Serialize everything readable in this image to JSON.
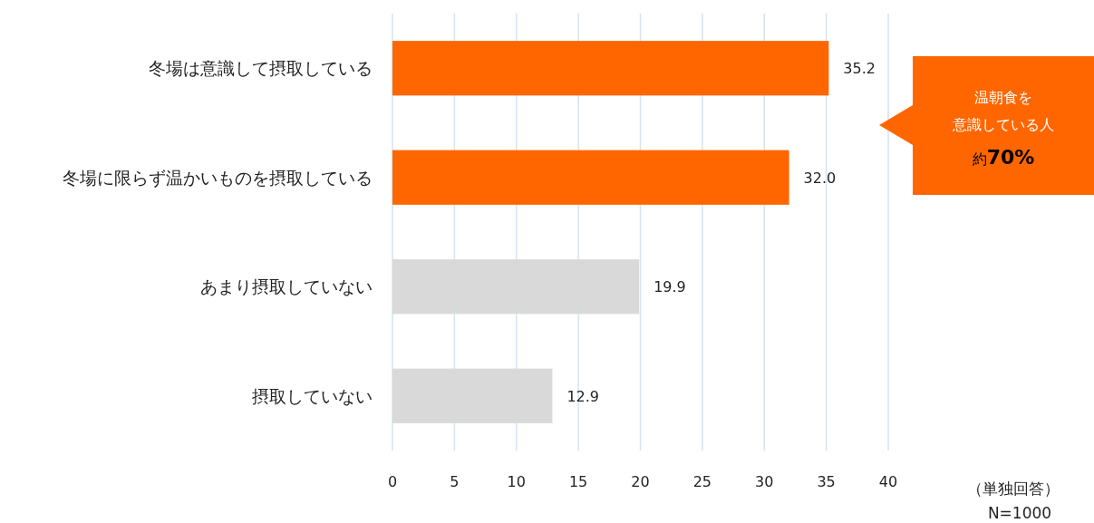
{
  "chart_data": {
    "type": "bar",
    "orientation": "horizontal",
    "categories": [
      "冬場は意識して摂取している",
      "冬場に限らず温かいものを摂取している",
      "あまり摂取していない",
      "摂取していない"
    ],
    "values": [
      35.2,
      32.0,
      19.9,
      12.9
    ],
    "colors": [
      "#ff6600",
      "#ff6600",
      "#d9d9d9",
      "#d9d9d9"
    ],
    "value_labels": [
      "35.2",
      "32.0",
      "19.9",
      "12.9"
    ],
    "xlim": [
      0,
      40
    ],
    "xticks": [
      0,
      5,
      10,
      15,
      20,
      25,
      30,
      35,
      40
    ],
    "grid": "x",
    "annotations": [
      "温朝食を",
      "意識している人",
      "約**70%**",
      "（単独回答）",
      "N=1000"
    ]
  }
}
